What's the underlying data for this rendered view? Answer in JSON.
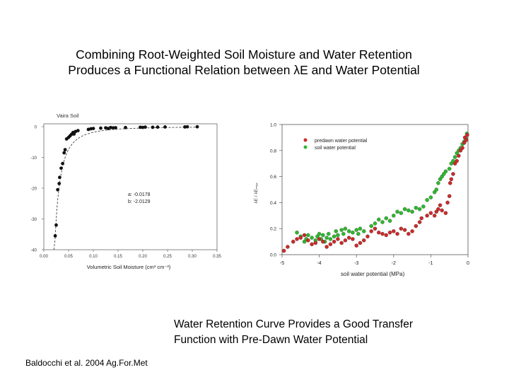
{
  "title_lines": [
    "Combining Root-Weighted Soil Moisture and Water Retention",
    "Produces a Functional Relation between λE and Water Potential"
  ],
  "caption_lines": [
    "Water Retention Curve Provides a Good Transfer",
    "Function with Pre-Dawn Water Potential"
  ],
  "citation": "Baldocchi et al. 2004 Ag.For.Met",
  "colors": {
    "predawn": "#cc2a2a",
    "soil": "#2db82d",
    "points": "#111111",
    "fit": "#444444"
  },
  "chart_data": [
    {
      "type": "scatter",
      "title": "Vaira Soil",
      "xlabel": "Volumetric Soil Moisture (cm³ cm⁻³)",
      "ylabel": "",
      "xlim": [
        0,
        0.35
      ],
      "ylim": [
        -40,
        0
      ],
      "xticks": [
        "0.00",
        "0.05",
        "0.10",
        "0.15",
        "0.20",
        "0.25",
        "0.30",
        "0.35"
      ],
      "yticks": [
        "0",
        "-10",
        "-20",
        "-30",
        "-40"
      ],
      "annotation": [
        "a:  -0.0178",
        "b:  -2.0129"
      ],
      "fit": {
        "a": -0.0178,
        "b": -2.0129
      },
      "points": [
        [
          0.023,
          -35.5
        ],
        [
          0.025,
          -32
        ],
        [
          0.028,
          -20.5
        ],
        [
          0.031,
          -18.5
        ],
        [
          0.032,
          -16.5
        ],
        [
          0.035,
          -13.5
        ],
        [
          0.038,
          -12
        ],
        [
          0.041,
          -8.5
        ],
        [
          0.043,
          -7.5
        ],
        [
          0.046,
          -4
        ],
        [
          0.05,
          -3.5
        ],
        [
          0.053,
          -3
        ],
        [
          0.056,
          -2.5
        ],
        [
          0.059,
          -1.9
        ],
        [
          0.061,
          -2.4
        ],
        [
          0.064,
          -1.6
        ],
        [
          0.069,
          -1.3
        ],
        [
          0.09,
          -0.9
        ],
        [
          0.095,
          -0.7
        ],
        [
          0.1,
          -0.6
        ],
        [
          0.115,
          -0.5
        ],
        [
          0.125,
          -0.4
        ],
        [
          0.13,
          -0.6
        ],
        [
          0.135,
          -0.3
        ],
        [
          0.14,
          -0.4
        ],
        [
          0.145,
          -0.35
        ],
        [
          0.165,
          -0.3
        ],
        [
          0.195,
          -0.2
        ],
        [
          0.2,
          -0.25
        ],
        [
          0.205,
          -0.15
        ],
        [
          0.22,
          -0.2
        ],
        [
          0.23,
          -0.15
        ],
        [
          0.245,
          -0.1
        ],
        [
          0.285,
          -0.1
        ],
        [
          0.29,
          -0.05
        ],
        [
          0.31,
          -0.05
        ]
      ]
    },
    {
      "type": "scatter",
      "xlabel": "soil water potential (MPa)",
      "ylabel": "λE / λEₘₐₓ",
      "xlim": [
        -5,
        0
      ],
      "ylim": [
        0,
        1
      ],
      "xticks": [
        "-5",
        "-4",
        "-3",
        "-2",
        "-1",
        "0"
      ],
      "yticks": [
        "0.0",
        "0.2",
        "0.4",
        "0.6",
        "0.8",
        "1.0"
      ],
      "legend": "top-left",
      "series": [
        {
          "name": "predawn water potential",
          "points": [
            [
              -4.95,
              0.03
            ],
            [
              -4.85,
              0.06
            ],
            [
              -4.7,
              0.1
            ],
            [
              -4.6,
              0.12
            ],
            [
              -4.5,
              0.13
            ],
            [
              -4.4,
              0.15
            ],
            [
              -4.3,
              0.11
            ],
            [
              -4.2,
              0.08
            ],
            [
              -4.1,
              0.09
            ],
            [
              -4,
              0.12
            ],
            [
              -3.9,
              0.1
            ],
            [
              -3.8,
              0.06
            ],
            [
              -3.7,
              0.08
            ],
            [
              -3.6,
              0.1
            ],
            [
              -3.5,
              0.12
            ],
            [
              -3.4,
              0.09
            ],
            [
              -3.3,
              0.11
            ],
            [
              -3.2,
              0.13
            ],
            [
              -3.1,
              0.12
            ],
            [
              -3,
              0.07
            ],
            [
              -2.9,
              0.09
            ],
            [
              -2.8,
              0.11
            ],
            [
              -2.7,
              0.14
            ],
            [
              -2.6,
              0.18
            ],
            [
              -2.5,
              0.2
            ],
            [
              -2.4,
              0.17
            ],
            [
              -2.3,
              0.16
            ],
            [
              -2.2,
              0.15
            ],
            [
              -2.1,
              0.17
            ],
            [
              -2,
              0.18
            ],
            [
              -1.9,
              0.16
            ],
            [
              -1.8,
              0.2
            ],
            [
              -1.7,
              0.19
            ],
            [
              -1.6,
              0.16
            ],
            [
              -1.5,
              0.18
            ],
            [
              -1.4,
              0.22
            ],
            [
              -1.3,
              0.25
            ],
            [
              -1.25,
              0.28
            ],
            [
              -1.1,
              0.3
            ],
            [
              -1,
              0.32
            ],
            [
              -0.9,
              0.3
            ],
            [
              -0.85,
              0.33
            ],
            [
              -0.8,
              0.35
            ],
            [
              -0.75,
              0.38
            ],
            [
              -0.7,
              0.34
            ],
            [
              -0.6,
              0.32
            ],
            [
              -0.55,
              0.4
            ],
            [
              -0.5,
              0.45
            ],
            [
              -0.48,
              0.55
            ],
            [
              -0.45,
              0.58
            ],
            [
              -0.4,
              0.62
            ],
            [
              -0.35,
              0.7
            ],
            [
              -0.3,
              0.72
            ],
            [
              -0.25,
              0.76
            ],
            [
              -0.2,
              0.8
            ],
            [
              -0.15,
              0.82
            ],
            [
              -0.1,
              0.86
            ],
            [
              -0.08,
              0.9
            ],
            [
              -0.05,
              0.88
            ],
            [
              -0.02,
              0.92
            ]
          ]
        },
        {
          "name": "soil water potential",
          "points": [
            [
              -4.6,
              0.17
            ],
            [
              -4.5,
              0.14
            ],
            [
              -4.4,
              0.1
            ],
            [
              -4.35,
              0.12
            ],
            [
              -4.3,
              0.15
            ],
            [
              -4.2,
              0.13
            ],
            [
              -4.1,
              0.11
            ],
            [
              -4.05,
              0.14
            ],
            [
              -4,
              0.16
            ],
            [
              -3.95,
              0.12
            ],
            [
              -3.9,
              0.15
            ],
            [
              -3.85,
              0.1
            ],
            [
              -3.8,
              0.13
            ],
            [
              -3.75,
              0.16
            ],
            [
              -3.7,
              0.12
            ],
            [
              -3.6,
              0.14
            ],
            [
              -3.55,
              0.18
            ],
            [
              -3.5,
              0.15
            ],
            [
              -3.4,
              0.19
            ],
            [
              -3.35,
              0.16
            ],
            [
              -3.3,
              0.2
            ],
            [
              -3.2,
              0.18
            ],
            [
              -3.1,
              0.17
            ],
            [
              -3,
              0.19
            ],
            [
              -2.95,
              0.16
            ],
            [
              -2.9,
              0.2
            ],
            [
              -2.8,
              0.18
            ],
            [
              -2.6,
              0.22
            ],
            [
              -2.5,
              0.24
            ],
            [
              -2.4,
              0.27
            ],
            [
              -2.3,
              0.25
            ],
            [
              -2.2,
              0.28
            ],
            [
              -2.1,
              0.26
            ],
            [
              -2,
              0.3
            ],
            [
              -1.9,
              0.33
            ],
            [
              -1.8,
              0.32
            ],
            [
              -1.7,
              0.35
            ],
            [
              -1.6,
              0.34
            ],
            [
              -1.5,
              0.33
            ],
            [
              -1.4,
              0.36
            ],
            [
              -1.3,
              0.35
            ],
            [
              -1.2,
              0.37
            ],
            [
              -1.1,
              0.42
            ],
            [
              -1,
              0.44
            ],
            [
              -0.9,
              0.48
            ],
            [
              -0.85,
              0.5
            ],
            [
              -0.8,
              0.55
            ],
            [
              -0.75,
              0.58
            ],
            [
              -0.7,
              0.6
            ],
            [
              -0.65,
              0.62
            ],
            [
              -0.6,
              0.64
            ],
            [
              -0.5,
              0.66
            ],
            [
              -0.45,
              0.7
            ],
            [
              -0.4,
              0.72
            ],
            [
              -0.35,
              0.75
            ],
            [
              -0.3,
              0.78
            ],
            [
              -0.25,
              0.8
            ],
            [
              -0.2,
              0.82
            ],
            [
              -0.15,
              0.85
            ],
            [
              -0.1,
              0.87
            ],
            [
              -0.08,
              0.9
            ],
            [
              -0.05,
              0.89
            ],
            [
              -0.03,
              0.93
            ]
          ]
        }
      ]
    }
  ]
}
